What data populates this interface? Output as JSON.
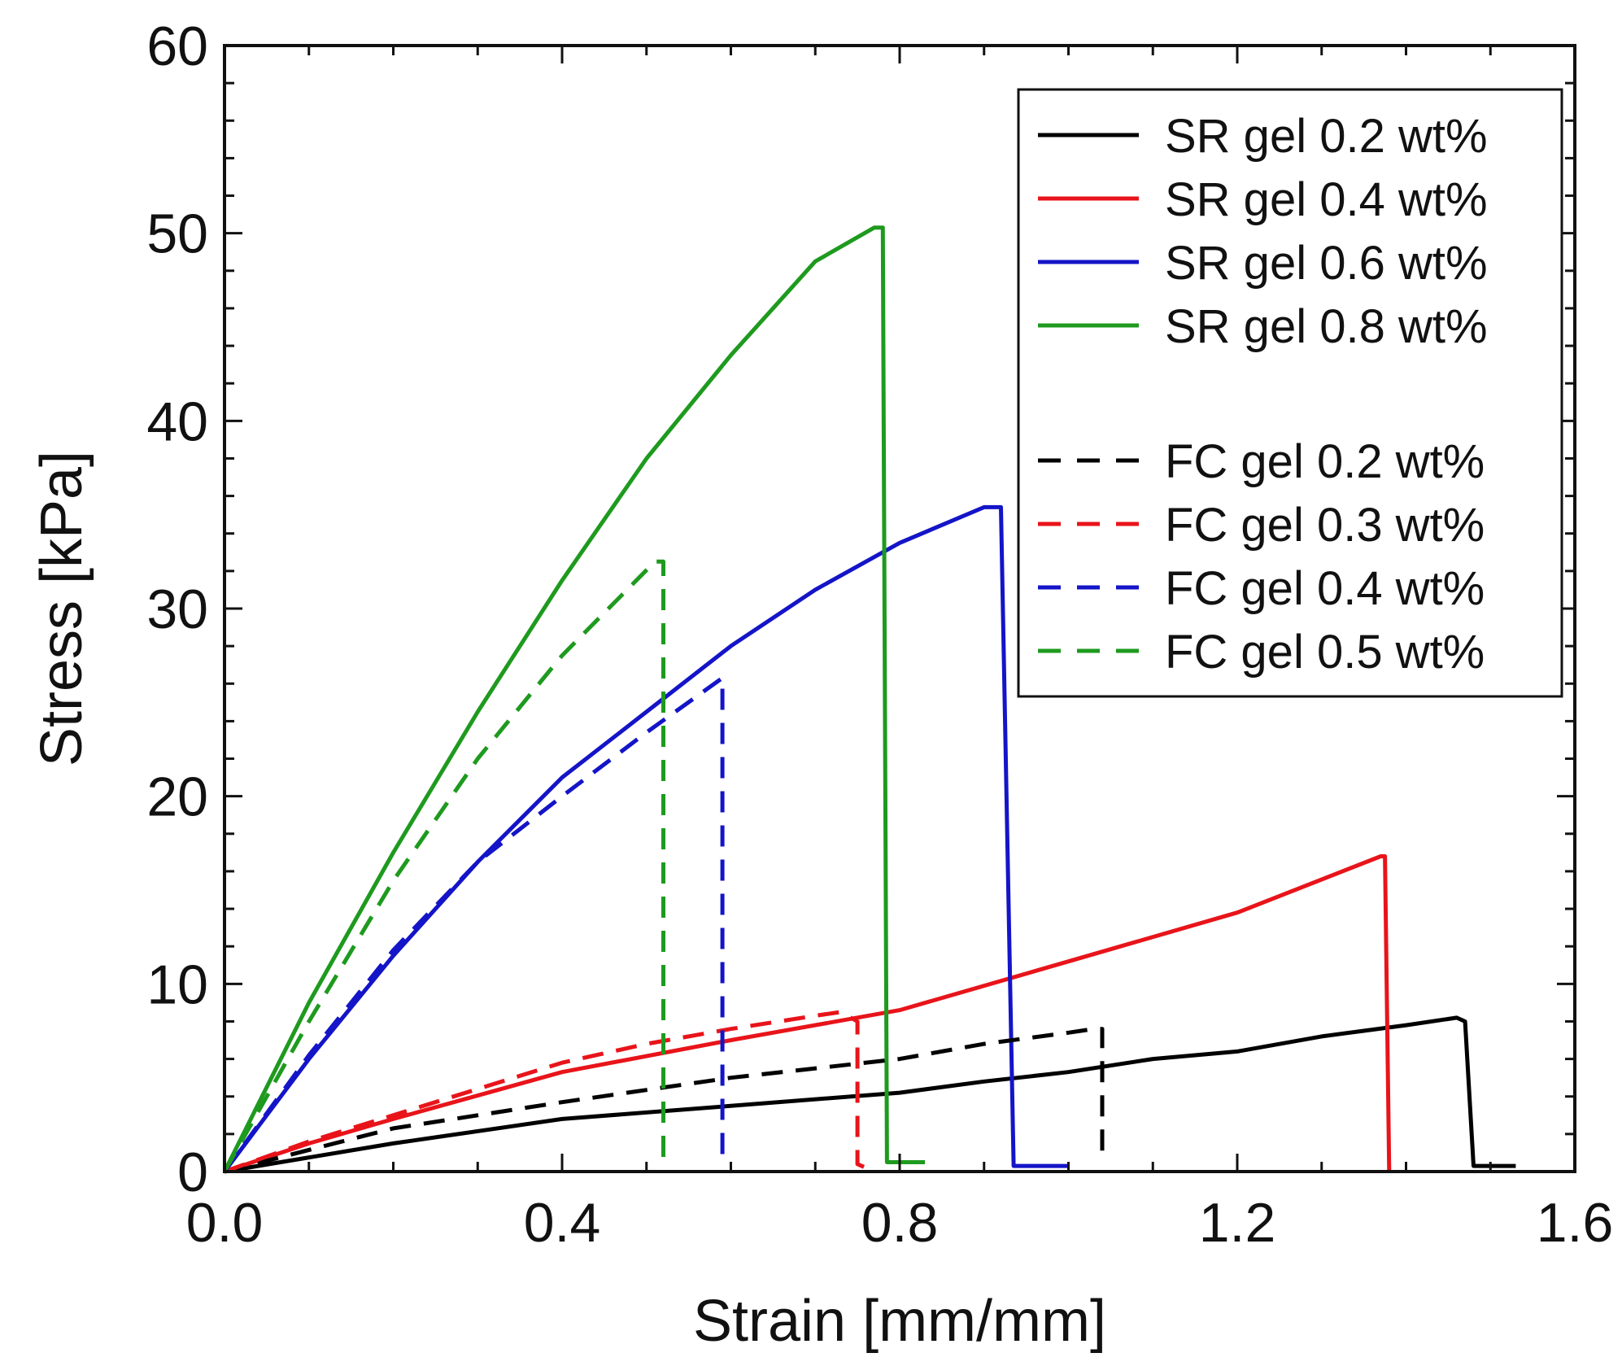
{
  "chart_data": {
    "type": "line",
    "title": "",
    "xlabel": "Strain [mm/mm]",
    "ylabel": "Stress [kPa]",
    "xlim": [
      0.0,
      1.6
    ],
    "ylim": [
      0,
      60
    ],
    "xticks": [
      0.0,
      0.4,
      0.8,
      1.2,
      1.6
    ],
    "xtick_labels": [
      "0.0",
      "0.4",
      "0.8",
      "1.2",
      "1.6"
    ],
    "yticks": [
      0,
      10,
      20,
      30,
      40,
      50,
      60
    ],
    "ytick_labels": [
      "0",
      "10",
      "20",
      "30",
      "40",
      "50",
      "60"
    ],
    "grid": false,
    "legend_position": "top-right",
    "series": [
      {
        "name": "SR gel 0.2 wt%",
        "color": "#000000",
        "dash": "solid",
        "points": [
          [
            0.0,
            0.0
          ],
          [
            0.2,
            1.5
          ],
          [
            0.4,
            2.8
          ],
          [
            0.6,
            3.5
          ],
          [
            0.8,
            4.2
          ],
          [
            0.9,
            4.8
          ],
          [
            1.0,
            5.3
          ],
          [
            1.1,
            6.0
          ],
          [
            1.2,
            6.4
          ],
          [
            1.3,
            7.2
          ],
          [
            1.4,
            7.8
          ],
          [
            1.46,
            8.2
          ],
          [
            1.47,
            8.0
          ],
          [
            1.48,
            0.3
          ],
          [
            1.53,
            0.3
          ]
        ]
      },
      {
        "name": "SR gel 0.4 wt%",
        "color": "#e8141a",
        "dash": "solid",
        "points": [
          [
            0.0,
            0.0
          ],
          [
            0.1,
            1.5
          ],
          [
            0.2,
            2.8
          ],
          [
            0.4,
            5.3
          ],
          [
            0.6,
            7.0
          ],
          [
            0.8,
            8.6
          ],
          [
            1.0,
            11.2
          ],
          [
            1.2,
            13.8
          ],
          [
            1.37,
            16.8
          ],
          [
            1.375,
            16.8
          ],
          [
            1.38,
            0.0
          ]
        ]
      },
      {
        "name": "SR gel 0.6 wt%",
        "color": "#1414c8",
        "dash": "solid",
        "points": [
          [
            0.0,
            0.0
          ],
          [
            0.05,
            3.0
          ],
          [
            0.1,
            6.0
          ],
          [
            0.2,
            11.5
          ],
          [
            0.3,
            16.5
          ],
          [
            0.4,
            21.0
          ],
          [
            0.5,
            24.5
          ],
          [
            0.6,
            28.0
          ],
          [
            0.7,
            31.0
          ],
          [
            0.8,
            33.5
          ],
          [
            0.9,
            35.4
          ],
          [
            0.92,
            35.4
          ],
          [
            0.935,
            0.3
          ],
          [
            1.0,
            0.3
          ]
        ]
      },
      {
        "name": "SR gel 0.8 wt%",
        "color": "#1e9a1e",
        "dash": "solid",
        "points": [
          [
            0.0,
            0.0
          ],
          [
            0.05,
            4.5
          ],
          [
            0.1,
            9.0
          ],
          [
            0.2,
            17.0
          ],
          [
            0.3,
            24.5
          ],
          [
            0.4,
            31.5
          ],
          [
            0.5,
            38.0
          ],
          [
            0.6,
            43.5
          ],
          [
            0.7,
            48.5
          ],
          [
            0.77,
            50.3
          ],
          [
            0.78,
            50.3
          ],
          [
            0.785,
            0.5
          ],
          [
            0.83,
            0.5
          ]
        ]
      },
      {
        "name": "FC gel 0.2 wt%",
        "color": "#000000",
        "dash": "dashed",
        "points": [
          [
            0.0,
            0.0
          ],
          [
            0.2,
            2.3
          ],
          [
            0.4,
            3.7
          ],
          [
            0.6,
            5.0
          ],
          [
            0.8,
            6.0
          ],
          [
            0.9,
            6.8
          ],
          [
            1.0,
            7.4
          ],
          [
            1.03,
            7.6
          ],
          [
            1.04,
            7.6
          ],
          [
            1.04,
            0.5
          ]
        ]
      },
      {
        "name": "FC gel 0.3 wt%",
        "color": "#e8141a",
        "dash": "dashed",
        "points": [
          [
            0.0,
            0.0
          ],
          [
            0.1,
            1.6
          ],
          [
            0.2,
            3.0
          ],
          [
            0.4,
            5.8
          ],
          [
            0.5,
            6.8
          ],
          [
            0.6,
            7.6
          ],
          [
            0.7,
            8.3
          ],
          [
            0.73,
            8.5
          ],
          [
            0.75,
            8.0
          ],
          [
            0.75,
            0.4
          ],
          [
            0.76,
            0.2
          ]
        ]
      },
      {
        "name": "FC gel 0.4 wt%",
        "color": "#1414c8",
        "dash": "dashed",
        "points": [
          [
            0.0,
            0.0
          ],
          [
            0.1,
            6.2
          ],
          [
            0.2,
            11.8
          ],
          [
            0.3,
            16.5
          ],
          [
            0.4,
            20.0
          ],
          [
            0.5,
            23.4
          ],
          [
            0.59,
            26.3
          ],
          [
            0.59,
            0.3
          ]
        ]
      },
      {
        "name": "FC gel 0.5 wt%",
        "color": "#1e9a1e",
        "dash": "dashed",
        "points": [
          [
            0.0,
            0.0
          ],
          [
            0.1,
            8.0
          ],
          [
            0.2,
            15.5
          ],
          [
            0.3,
            22.0
          ],
          [
            0.4,
            27.5
          ],
          [
            0.51,
            32.5
          ],
          [
            0.52,
            32.5
          ],
          [
            0.52,
            0.0
          ]
        ]
      }
    ]
  }
}
